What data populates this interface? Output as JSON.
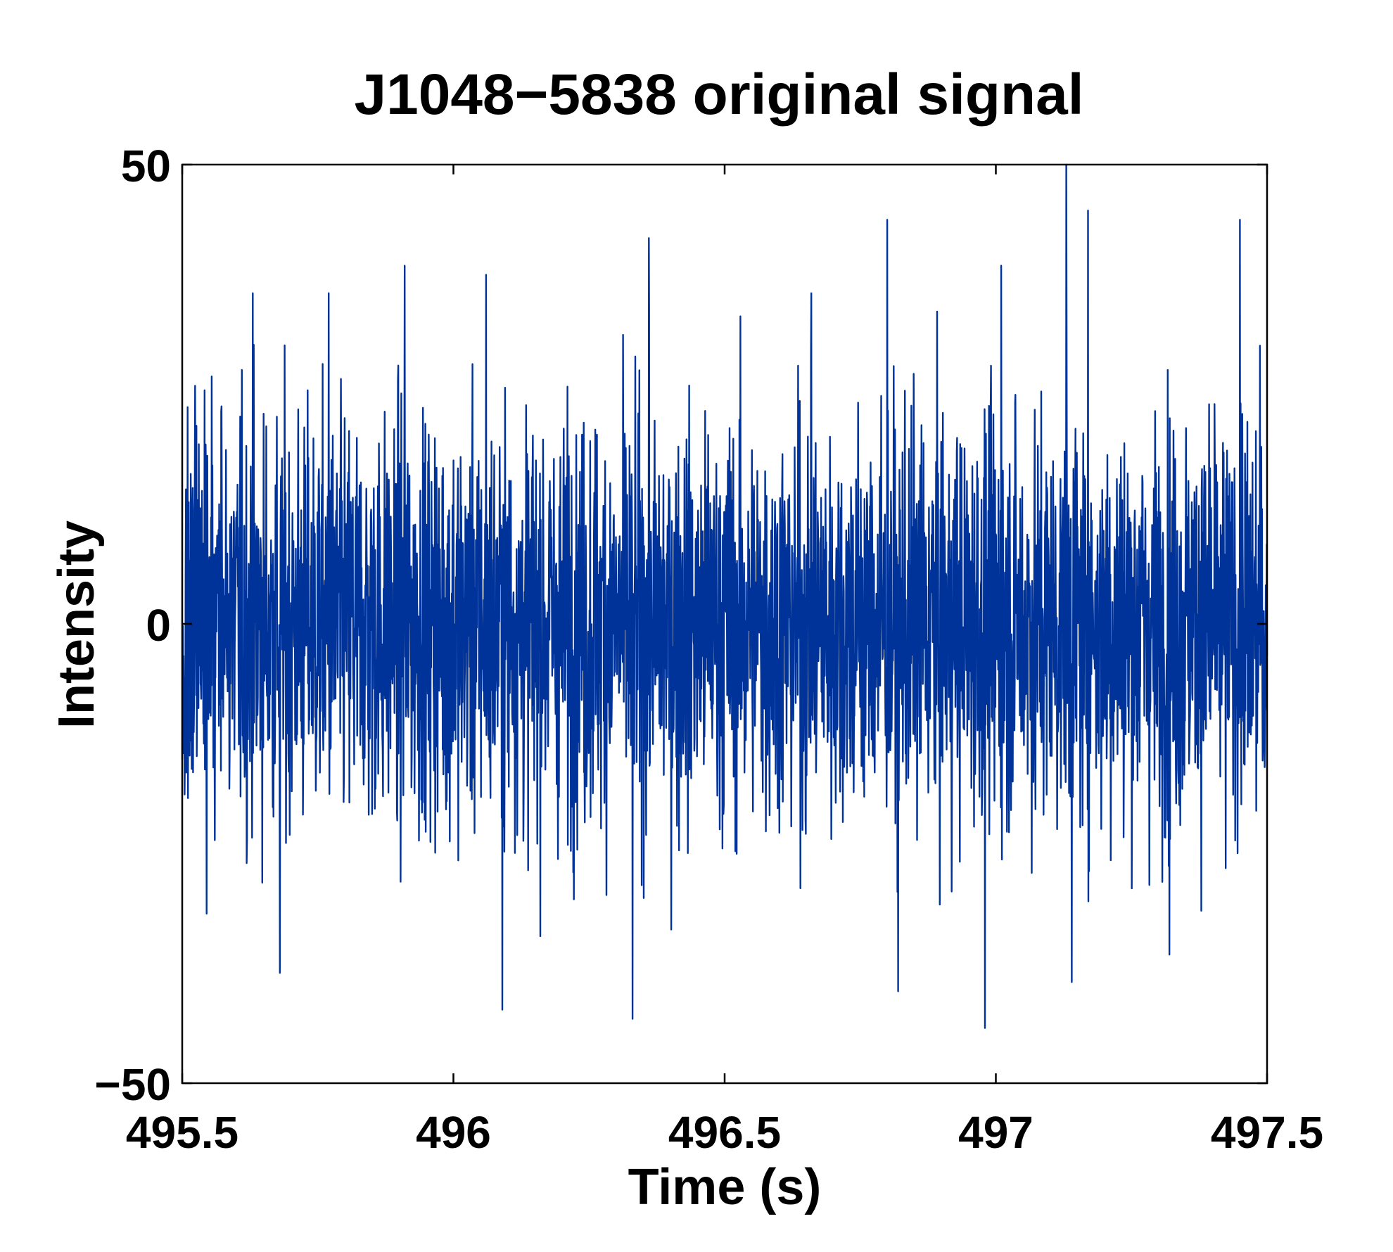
{
  "chart_data": {
    "type": "line",
    "title": "J1048−5838 original signal",
    "xlabel": "Time (s)",
    "ylabel": "Intensity",
    "xlim": [
      495.5,
      497.5
    ],
    "ylim": [
      -50,
      50
    ],
    "x_ticks": [
      495.5,
      496,
      496.5,
      497,
      497.5
    ],
    "x_tick_labels": [
      "495.5",
      "496",
      "496.5",
      "497",
      "497.5"
    ],
    "y_ticks": [
      -50,
      0,
      50
    ],
    "y_tick_labels": [
      "−50",
      "0",
      "50"
    ],
    "grid": false,
    "line_color": "#003399",
    "series": [
      {
        "description_of_shape": "dense noise-like pulsar time series",
        "x_start": 495.5,
        "x_end": 497.5,
        "core_band": [
          -20,
          20
        ],
        "peaks": [
          {
            "x": 495.63,
            "y": 36
          },
          {
            "x": 495.77,
            "y": 36
          },
          {
            "x": 495.91,
            "y": 39
          },
          {
            "x": 496.06,
            "y": 38
          },
          {
            "x": 496.09,
            "y": 40
          },
          {
            "x": 496.36,
            "y": 42
          },
          {
            "x": 496.66,
            "y": 36
          },
          {
            "x": 496.8,
            "y": 44
          },
          {
            "x": 497.01,
            "y": 39
          },
          {
            "x": 497.13,
            "y": 50
          },
          {
            "x": 497.17,
            "y": 45
          },
          {
            "x": 497.45,
            "y": 44
          }
        ],
        "troughs": [
          {
            "x": 495.68,
            "y": -38
          },
          {
            "x": 496.09,
            "y": -42
          },
          {
            "x": 496.33,
            "y": -43
          },
          {
            "x": 496.82,
            "y": -40
          },
          {
            "x": 496.98,
            "y": -44
          },
          {
            "x": 497.14,
            "y": -39
          },
          {
            "x": 497.32,
            "y": -36
          }
        ]
      }
    ]
  }
}
